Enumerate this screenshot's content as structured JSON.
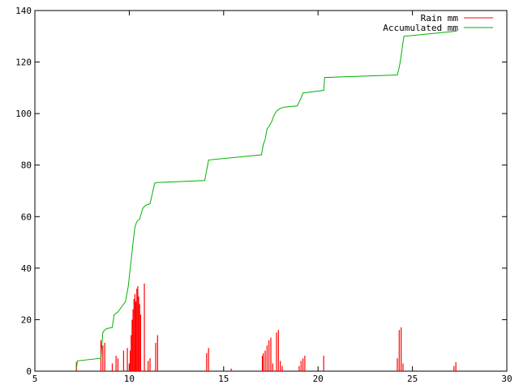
{
  "chart_data": {
    "type": "line",
    "title": "",
    "xlabel": "",
    "ylabel": "",
    "xlim": [
      5,
      30
    ],
    "ylim": [
      0,
      140
    ],
    "grid": false,
    "legend_position": "top-right",
    "x_ticks": [
      5,
      10,
      15,
      20,
      25,
      30
    ],
    "y_ticks": [
      0,
      20,
      40,
      60,
      80,
      100,
      120,
      140
    ],
    "series": [
      {
        "name": "Rain mm",
        "style": "impulses",
        "color": "#ff0000",
        "x": [
          7.2,
          8.5,
          8.6,
          8.7,
          9.1,
          9.3,
          9.4,
          9.7,
          9.9,
          10.0,
          10.05,
          10.1,
          10.15,
          10.2,
          10.25,
          10.3,
          10.35,
          10.4,
          10.45,
          10.5,
          10.55,
          10.6,
          10.8,
          11.0,
          11.1,
          11.4,
          11.5,
          14.1,
          14.2,
          15.4,
          17.05,
          17.1,
          17.2,
          17.3,
          17.4,
          17.5,
          17.6,
          17.8,
          17.9,
          18.0,
          18.1,
          19.0,
          19.1,
          19.2,
          19.3,
          20.3,
          24.2,
          24.3,
          24.4,
          24.5,
          27.2,
          27.3
        ],
        "y": [
          3.5,
          12,
          10,
          11,
          3,
          6,
          5,
          8,
          9,
          3,
          8,
          14,
          20,
          24,
          28,
          30,
          27,
          32,
          33,
          29,
          26,
          22,
          34,
          4,
          5,
          11,
          14,
          7,
          9,
          1,
          6,
          7,
          8,
          10,
          12,
          13,
          3,
          15,
          16,
          4,
          2,
          2,
          4,
          5,
          6,
          6,
          5,
          16,
          17,
          3,
          2,
          3.5
        ]
      },
      {
        "name": "Accumulated mm",
        "style": "line",
        "color": "#00b000",
        "x": [
          7.2,
          7.25,
          8.5,
          8.55,
          8.6,
          8.7,
          8.8,
          9.1,
          9.2,
          9.4,
          9.6,
          9.8,
          9.95,
          10.05,
          10.1,
          10.2,
          10.3,
          10.4,
          10.45,
          10.55,
          10.7,
          10.8,
          10.9,
          11.1,
          11.35,
          11.45,
          14.0,
          14.1,
          14.2,
          17.0,
          17.1,
          17.2,
          17.3,
          17.4,
          17.55,
          17.65,
          17.8,
          18.0,
          18.2,
          18.9,
          19.1,
          19.2,
          20.3,
          20.35,
          24.2,
          24.3,
          24.35,
          24.45,
          24.55,
          27.35
        ],
        "y": [
          1,
          4,
          5,
          10,
          15,
          16,
          16.5,
          17,
          22,
          23,
          25,
          27,
          33,
          40,
          43,
          50,
          56,
          58,
          58.5,
          59,
          63,
          64,
          64.5,
          65,
          73,
          73.2,
          74,
          78,
          82,
          84,
          88,
          90,
          94,
          95,
          97,
          99,
          101,
          102,
          102.5,
          103,
          106,
          108,
          109,
          114,
          115,
          118,
          120,
          125,
          130,
          132
        ]
      }
    ]
  }
}
